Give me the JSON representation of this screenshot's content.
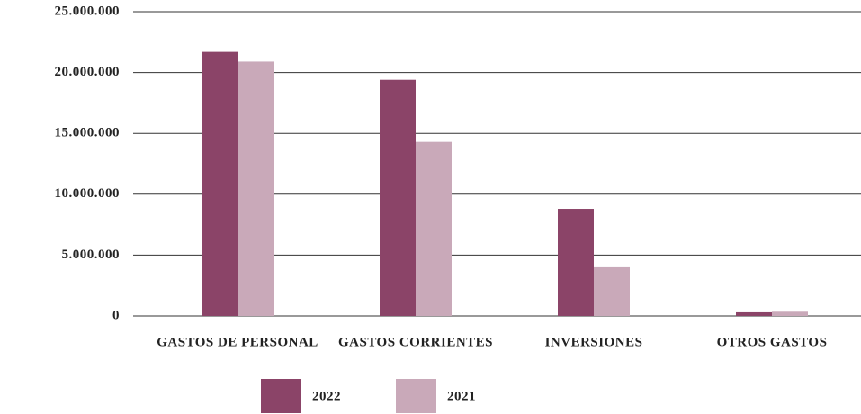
{
  "chart_data": {
    "type": "bar",
    "categories": [
      "GASTOS DE PERSONAL",
      "GASTOS CORRIENTES",
      "INVERSIONES",
      "OTROS GASTOS"
    ],
    "series": [
      {
        "name": "2022",
        "color": "#8b4468",
        "values": [
          21700000,
          19400000,
          8800000,
          300000
        ]
      },
      {
        "name": "2021",
        "color": "#c9a9b9",
        "values": [
          20900000,
          14300000,
          4000000,
          350000
        ]
      }
    ],
    "ylim": [
      0,
      25000000
    ],
    "yticks": [
      0,
      {
        "value": 5000000,
        "label": "5.000.000"
      },
      {
        "value": 10000000,
        "label": "10.000.000"
      },
      {
        "value": 15000000,
        "label": "15.000.000"
      },
      {
        "value": 20000000,
        "label": "20.000.000"
      },
      {
        "value": 25000000,
        "label": "25.000.000"
      }
    ],
    "grid": true,
    "legend": "bottom"
  }
}
